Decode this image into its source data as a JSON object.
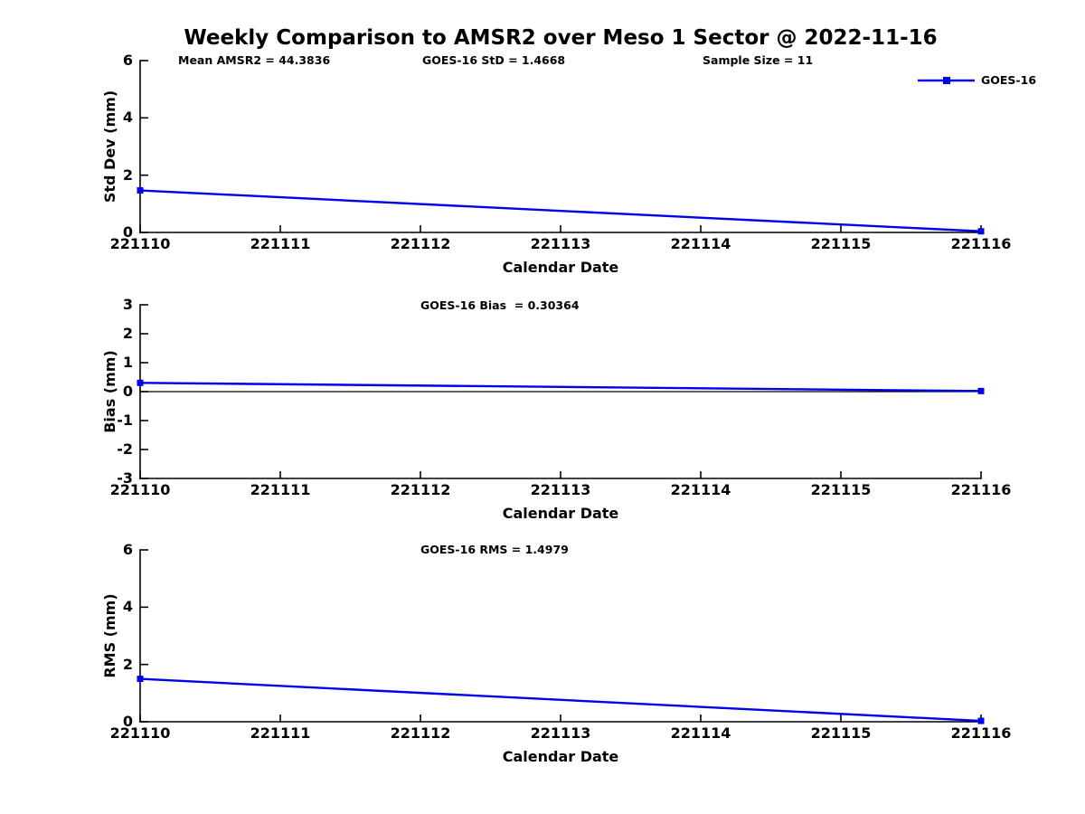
{
  "figure": {
    "title": "Weekly Comparison to AMSR2 over Meso 1 Sector @ 2022-11-16",
    "stats": [
      "Mean AMSR2 = 44.3836",
      "GOES-16 StD = 1.4668",
      "Sample Size = 11"
    ],
    "legend": {
      "label": "GOES-16",
      "color": "#0000EE",
      "marker": "square-marker-icon"
    },
    "accent_color": "#0000EE"
  },
  "chart_data": [
    {
      "type": "line",
      "ylabel": "Std Dev (mm)",
      "xlabel": "Calendar Date",
      "ylim": [
        0,
        6
      ],
      "yticks": [
        0,
        2,
        4,
        6
      ],
      "xlim": [
        221110,
        221116
      ],
      "xticks": [
        221110,
        221111,
        221112,
        221113,
        221114,
        221115,
        221116
      ],
      "grid": false,
      "zero_line": false,
      "annotation": "",
      "legend_position": "top-right-outside",
      "series": [
        {
          "name": "GOES-16",
          "color": "#0000EE",
          "marker": "square",
          "x": [
            221110,
            221116
          ],
          "y": [
            1.4668,
            0.04
          ]
        }
      ]
    },
    {
      "type": "line",
      "ylabel": "Bias (mm)",
      "xlabel": "Calendar Date",
      "ylim": [
        -3,
        3
      ],
      "yticks": [
        -3,
        -2,
        -1,
        0,
        1,
        2,
        3
      ],
      "xlim": [
        221110,
        221116
      ],
      "xticks": [
        221110,
        221111,
        221112,
        221113,
        221114,
        221115,
        221116
      ],
      "grid": false,
      "zero_line": true,
      "annotation": "GOES-16 Bias  = 0.30364",
      "series": [
        {
          "name": "GOES-16",
          "color": "#0000EE",
          "marker": "square",
          "x": [
            221110,
            221116
          ],
          "y": [
            0.30364,
            0.02
          ]
        }
      ]
    },
    {
      "type": "line",
      "ylabel": "RMS (mm)",
      "xlabel": "Calendar Date",
      "ylim": [
        0,
        6
      ],
      "yticks": [
        0,
        2,
        4,
        6
      ],
      "xlim": [
        221110,
        221116
      ],
      "xticks": [
        221110,
        221111,
        221112,
        221113,
        221114,
        221115,
        221116
      ],
      "grid": false,
      "zero_line": false,
      "annotation": "GOES-16 RMS = 1.4979",
      "series": [
        {
          "name": "GOES-16",
          "color": "#0000EE",
          "marker": "square",
          "x": [
            221110,
            221116
          ],
          "y": [
            1.4979,
            0.03
          ]
        }
      ]
    }
  ]
}
